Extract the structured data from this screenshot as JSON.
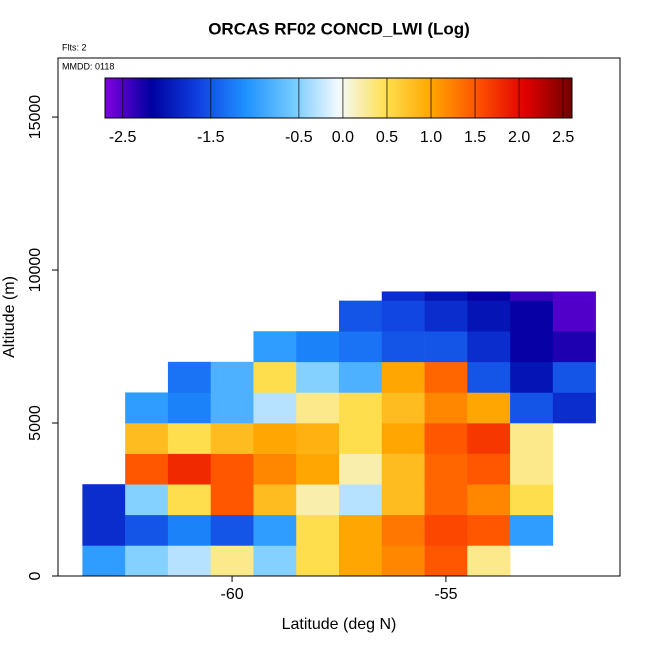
{
  "chart_data": {
    "type": "heatmap",
    "title": "ORCAS RF02 CONCD_LWI (Log)",
    "subtitle": "Flts: 2",
    "annotation": "MMDD: 0118",
    "x_label": "Latitude (deg N)",
    "y_label": "Altitude (m)",
    "xlim": [
      -64.07,
      -50.93
    ],
    "ylim": [
      0,
      16930
    ],
    "xticks": [
      -60,
      -55
    ],
    "yticks": [
      0,
      5000,
      10000,
      15000
    ],
    "x_bins": [
      -63.5,
      -62.5,
      -61.5,
      -60.5,
      -59.5,
      -58.5,
      -57.5,
      -56.5,
      -55.5,
      -54.5,
      -53.5,
      -52.5,
      -51.5
    ],
    "y_bins": [
      0,
      1000,
      2000,
      3000,
      4000,
      5000,
      6000,
      7000,
      8000,
      9000,
      9300
    ],
    "z": [
      [
        -1.0,
        -0.5,
        -0.3,
        0.3,
        -0.5,
        0.5,
        1.0,
        1.2,
        1.5,
        0.3,
        null,
        null
      ],
      [
        -1.8,
        -1.5,
        -1.2,
        -1.5,
        -1.0,
        0.5,
        1.0,
        1.3,
        1.6,
        1.5,
        -1.0,
        null
      ],
      [
        -1.8,
        -0.5,
        0.5,
        1.5,
        0.8,
        0.2,
        -0.3,
        0.8,
        1.4,
        1.2,
        0.5,
        null
      ],
      [
        null,
        1.5,
        1.8,
        1.5,
        1.2,
        1.0,
        0.2,
        0.8,
        1.4,
        1.5,
        0.3,
        null
      ],
      [
        null,
        0.8,
        0.5,
        0.8,
        1.0,
        0.9,
        0.5,
        1.0,
        1.5,
        1.7,
        0.3,
        null
      ],
      [
        null,
        -1.0,
        -1.2,
        -0.8,
        -0.3,
        0.3,
        0.5,
        0.8,
        1.2,
        1.0,
        -1.5,
        -1.8
      ],
      [
        null,
        null,
        -1.3,
        -0.8,
        0.5,
        -0.5,
        -0.8,
        1.0,
        1.4,
        -1.5,
        -2.0,
        -1.5
      ],
      [
        null,
        null,
        null,
        null,
        -1.0,
        -1.2,
        -1.3,
        -1.5,
        -1.5,
        -1.8,
        -2.2,
        -2.3
      ],
      [
        null,
        null,
        null,
        null,
        null,
        null,
        -1.5,
        -1.6,
        -1.8,
        -2.0,
        -2.2,
        -2.5
      ],
      [
        null,
        null,
        null,
        null,
        null,
        null,
        null,
        -1.8,
        -2.0,
        -2.2,
        -2.4,
        -2.5
      ]
    ],
    "clim": [
      -2.7,
      2.6
    ],
    "colorscale": [
      "#8000e0",
      "#0000a0",
      "#1040e0",
      "#1e90ff",
      "#70c8ff",
      "#f4faff",
      "#ffe050",
      "#ffa500",
      "#ff5000",
      "#e00000",
      "#700000"
    ],
    "cticks": [
      -2.5,
      -1.5,
      -0.5,
      {
        "value": 0,
        "label": "0.0"
      },
      0.5,
      {
        "value": 1,
        "label": "1.0"
      },
      1.5,
      {
        "value": 2,
        "label": "2.0"
      },
      2.5
    ]
  }
}
